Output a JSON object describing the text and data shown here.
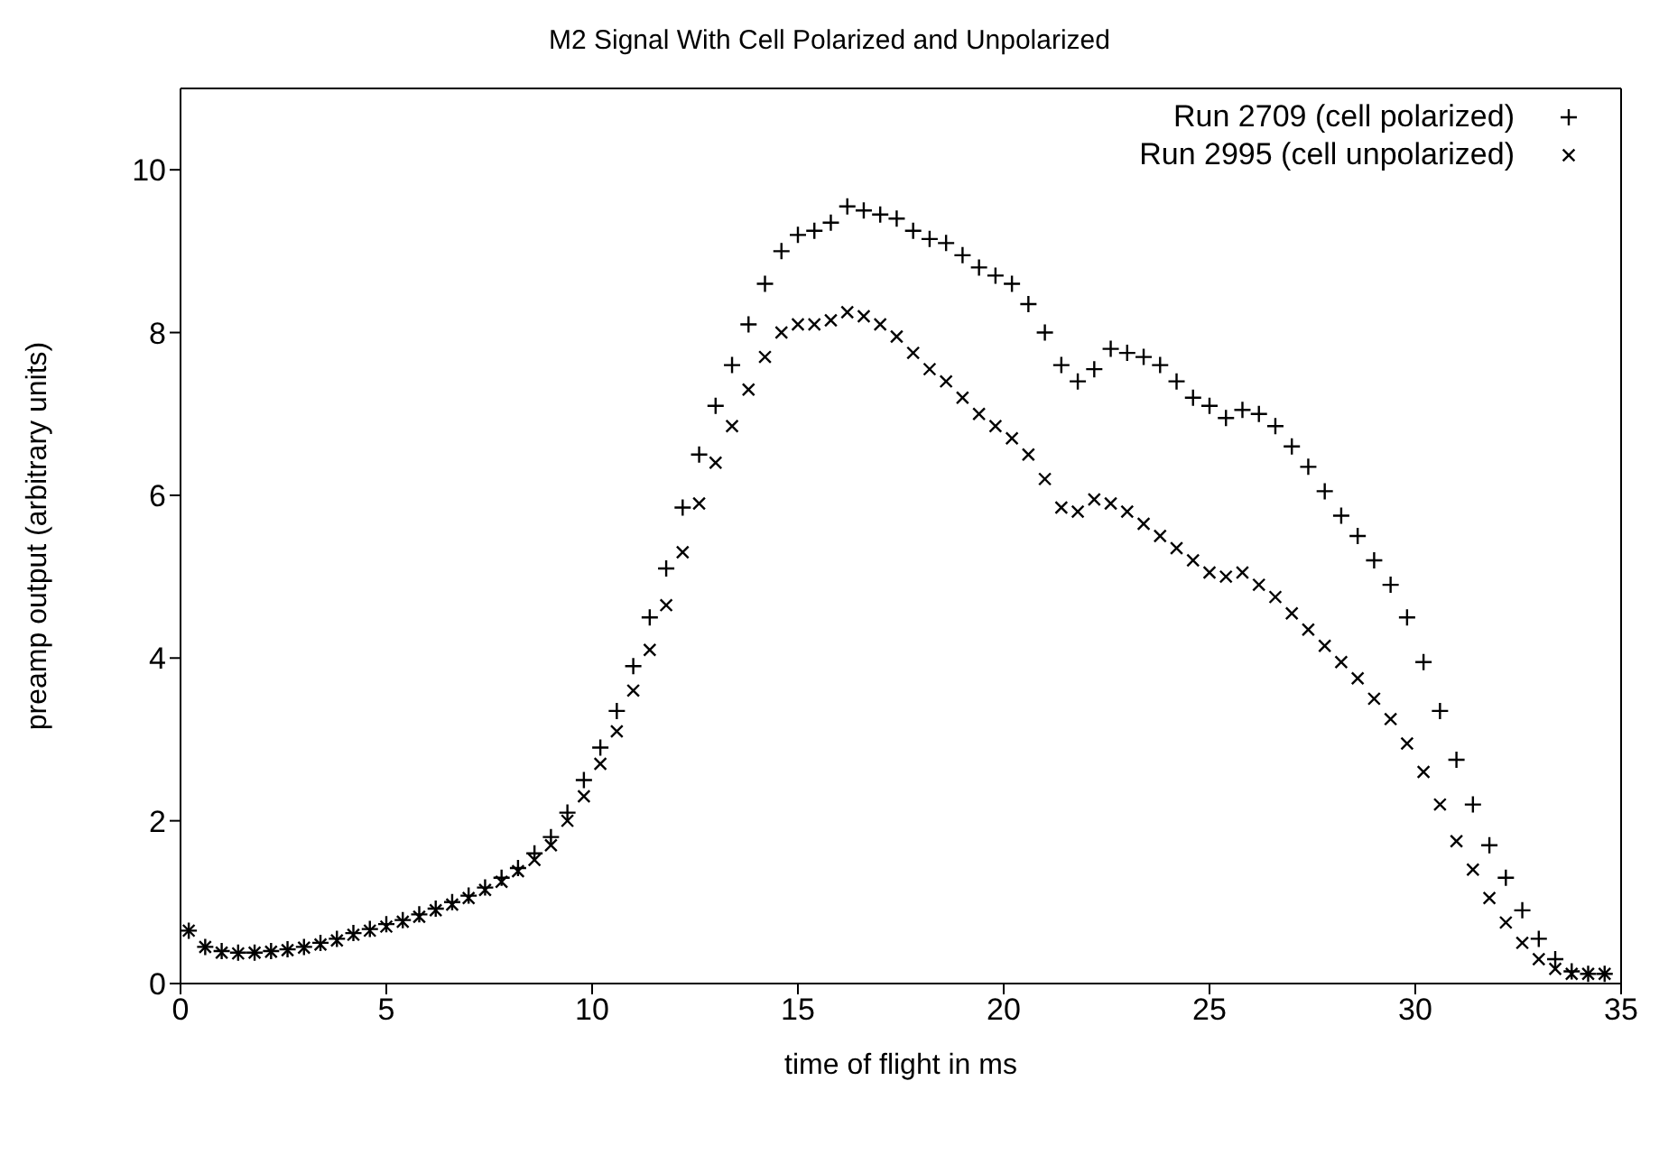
{
  "chart_data": {
    "type": "scatter",
    "title": "M2 Signal With Cell Polarized and Unpolarized",
    "xlabel": "time of flight in ms",
    "ylabel": "preamp output (arbitrary units)",
    "x": [
      0.2,
      0.6,
      1.0,
      1.4,
      1.8,
      2.2,
      2.6,
      3.0,
      3.4,
      3.8,
      4.2,
      4.6,
      5.0,
      5.4,
      5.8,
      6.2,
      6.6,
      7.0,
      7.4,
      7.8,
      8.2,
      8.6,
      9.0,
      9.4,
      9.8,
      10.2,
      10.6,
      11.0,
      11.4,
      11.8,
      12.2,
      12.6,
      13.0,
      13.4,
      13.8,
      14.2,
      14.6,
      15.0,
      15.4,
      15.8,
      16.2,
      16.6,
      17.0,
      17.4,
      17.8,
      18.2,
      18.6,
      19.0,
      19.4,
      19.8,
      20.2,
      20.6,
      21.0,
      21.4,
      21.8,
      22.2,
      22.6,
      23.0,
      23.4,
      23.8,
      24.2,
      24.6,
      25.0,
      25.4,
      25.8,
      26.2,
      26.6,
      27.0,
      27.4,
      27.8,
      28.2,
      28.6,
      29.0,
      29.4,
      29.8,
      30.2,
      30.6,
      31.0,
      31.4,
      31.8,
      32.2,
      32.6,
      33.0,
      33.4,
      33.8,
      34.2,
      34.6
    ],
    "series": [
      {
        "name": "Run 2709 (cell polarized)",
        "color": "#000000",
        "marker": "cross",
        "values": [
          0.65,
          0.45,
          0.4,
          0.38,
          0.38,
          0.4,
          0.42,
          0.45,
          0.5,
          0.55,
          0.62,
          0.67,
          0.73,
          0.78,
          0.85,
          0.92,
          1.0,
          1.08,
          1.18,
          1.3,
          1.42,
          1.6,
          1.8,
          2.1,
          2.5,
          2.9,
          3.35,
          3.9,
          4.5,
          5.1,
          5.85,
          6.5,
          7.1,
          7.6,
          8.1,
          8.6,
          9.0,
          9.2,
          9.25,
          9.35,
          9.55,
          9.5,
          9.45,
          9.4,
          9.25,
          9.15,
          9.1,
          8.95,
          8.8,
          8.7,
          8.6,
          8.35,
          8.0,
          7.6,
          7.4,
          7.55,
          7.8,
          7.75,
          7.7,
          7.6,
          7.4,
          7.2,
          7.1,
          6.95,
          7.05,
          7.0,
          6.85,
          6.6,
          6.35,
          6.05,
          5.75,
          5.5,
          5.2,
          4.9,
          4.5,
          3.95,
          3.35,
          2.75,
          2.2,
          1.7,
          1.3,
          0.9,
          0.55,
          0.3,
          0.15,
          0.12,
          0.12
        ]
      },
      {
        "name": "Run 2995 (cell unpolarized)",
        "color": "#000000",
        "marker": "cross",
        "values": [
          0.65,
          0.45,
          0.38,
          0.37,
          0.38,
          0.39,
          0.41,
          0.44,
          0.48,
          0.53,
          0.6,
          0.65,
          0.7,
          0.76,
          0.82,
          0.9,
          0.97,
          1.05,
          1.15,
          1.25,
          1.38,
          1.52,
          1.7,
          2.0,
          2.3,
          2.7,
          3.1,
          3.6,
          4.1,
          4.65,
          5.3,
          5.9,
          6.4,
          6.85,
          7.3,
          7.7,
          8.0,
          8.1,
          8.1,
          8.15,
          8.25,
          8.2,
          8.1,
          7.95,
          7.75,
          7.55,
          7.4,
          7.2,
          7.0,
          6.85,
          6.7,
          6.5,
          6.2,
          5.85,
          5.8,
          5.95,
          5.9,
          5.8,
          5.65,
          5.5,
          5.35,
          5.2,
          5.05,
          5.0,
          5.05,
          4.9,
          4.75,
          4.55,
          4.35,
          4.15,
          3.95,
          3.75,
          3.5,
          3.25,
          2.95,
          2.6,
          2.2,
          1.75,
          1.4,
          1.05,
          0.75,
          0.5,
          0.3,
          0.18,
          0.12,
          0.12,
          0.12
        ]
      }
    ],
    "xlim": [
      0,
      35
    ],
    "xticks": [
      0,
      5,
      10,
      15,
      20,
      25,
      30,
      35
    ],
    "ylim": [
      0,
      11
    ],
    "yticks": [
      0,
      2,
      4,
      6,
      8,
      10
    ],
    "grid": false,
    "legend": "top right"
  }
}
